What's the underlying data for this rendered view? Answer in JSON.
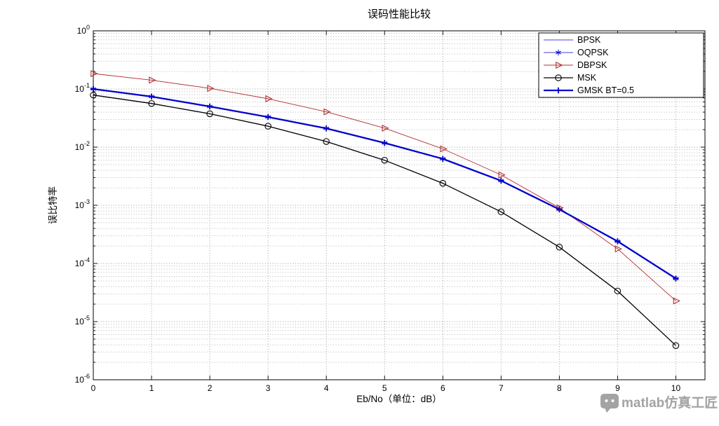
{
  "watermark": {
    "text": "matlab仿真工匠"
  },
  "chart_data": {
    "type": "line",
    "title": "误码性能比较",
    "xlabel": "Eb/No（单位：dB）",
    "ylabel": "误比特率",
    "x": [
      0,
      1,
      2,
      3,
      4,
      5,
      6,
      7,
      8,
      9,
      10
    ],
    "xlim": [
      0,
      10.5
    ],
    "y_scale": "log",
    "ylim_exp": [
      -6,
      0
    ],
    "x_ticks": [
      0,
      1,
      2,
      3,
      4,
      5,
      6,
      7,
      8,
      9,
      10
    ],
    "y_tick_exponents": [
      0,
      -1,
      -2,
      -3,
      -4,
      -5,
      -6
    ],
    "grid": "dotted-major-and-minor",
    "legend_position": "top-right-inside",
    "series": [
      {
        "name": "BPSK",
        "color": "#0000cc",
        "width": 0.8,
        "marker": "none",
        "values": [
          0.0786,
          0.0563,
          0.0375,
          0.0229,
          0.0125,
          0.00595,
          0.00239,
          0.000773,
          0.000191,
          3.36e-05,
          3.87e-06
        ]
      },
      {
        "name": "OQPSK",
        "color": "#0000cc",
        "width": 0.8,
        "marker": "asterisk",
        "values": [
          0.1,
          0.074,
          0.05,
          0.033,
          0.021,
          0.0118,
          0.0063,
          0.00265,
          0.00085,
          0.00024,
          5.5e-05
        ]
      },
      {
        "name": "DBPSK",
        "color": "#b03030",
        "width": 0.9,
        "marker": "triangle-right",
        "values": [
          0.1839,
          0.142,
          0.1025,
          0.068,
          0.0405,
          0.0212,
          0.00935,
          0.00333,
          0.000906,
          0.000178,
          2.27e-05
        ]
      },
      {
        "name": "MSK",
        "color": "#000000",
        "width": 1.3,
        "marker": "circle",
        "values": [
          0.0786,
          0.0563,
          0.0375,
          0.0229,
          0.0125,
          0.00595,
          0.00239,
          0.000773,
          0.000191,
          3.36e-05,
          3.87e-06
        ]
      },
      {
        "name": "GMSK BT=0.5",
        "color": "#0000cc",
        "width": 2.3,
        "marker": "plus",
        "values": [
          0.1,
          0.074,
          0.05,
          0.033,
          0.021,
          0.0118,
          0.0063,
          0.00265,
          0.00085,
          0.00024,
          5.5e-05
        ]
      }
    ]
  }
}
